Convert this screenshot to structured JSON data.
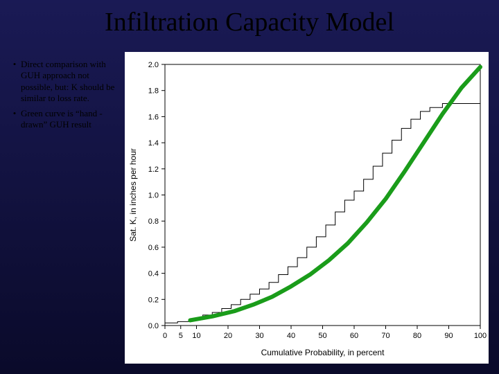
{
  "title": "Infiltration Capacity Model",
  "bullets": [
    "Direct comparison with GUH approach not possible, but: K should be similar to loss rate.",
    "Green curve is “hand -drawn” GUH result"
  ],
  "chart": {
    "type": "step+line",
    "background_color": "#ffffff",
    "plot_border_color": "#000000",
    "xlabel": "Cumulative Probability, in percent",
    "ylabel": "Sat. K, in inches per hour",
    "label_fontsize": 12,
    "tick_fontsize": 11,
    "xlim": [
      0,
      100
    ],
    "ylim": [
      0,
      2.0
    ],
    "xticks": [
      0,
      5,
      10,
      20,
      30,
      40,
      50,
      60,
      70,
      80,
      90,
      100
    ],
    "yticks": [
      0.0,
      0.2,
      0.4,
      0.6,
      0.8,
      1.0,
      1.2,
      1.4,
      1.6,
      1.8,
      2.0
    ],
    "step_series": {
      "color": "#000000",
      "line_width": 1,
      "points": [
        [
          0,
          0.02
        ],
        [
          4,
          0.02
        ],
        [
          4,
          0.03
        ],
        [
          8,
          0.03
        ],
        [
          8,
          0.05
        ],
        [
          12,
          0.05
        ],
        [
          12,
          0.08
        ],
        [
          15,
          0.08
        ],
        [
          15,
          0.1
        ],
        [
          18,
          0.1
        ],
        [
          18,
          0.13
        ],
        [
          21,
          0.13
        ],
        [
          21,
          0.16
        ],
        [
          24,
          0.16
        ],
        [
          24,
          0.2
        ],
        [
          27,
          0.2
        ],
        [
          27,
          0.24
        ],
        [
          30,
          0.24
        ],
        [
          30,
          0.28
        ],
        [
          33,
          0.28
        ],
        [
          33,
          0.33
        ],
        [
          36,
          0.33
        ],
        [
          36,
          0.39
        ],
        [
          39,
          0.39
        ],
        [
          39,
          0.45
        ],
        [
          42,
          0.45
        ],
        [
          42,
          0.52
        ],
        [
          45,
          0.52
        ],
        [
          45,
          0.6
        ],
        [
          48,
          0.6
        ],
        [
          48,
          0.68
        ],
        [
          51,
          0.68
        ],
        [
          51,
          0.77
        ],
        [
          54,
          0.77
        ],
        [
          54,
          0.87
        ],
        [
          57,
          0.87
        ],
        [
          57,
          0.96
        ],
        [
          60,
          0.96
        ],
        [
          60,
          1.03
        ],
        [
          63,
          1.03
        ],
        [
          63,
          1.12
        ],
        [
          66,
          1.12
        ],
        [
          66,
          1.22
        ],
        [
          69,
          1.22
        ],
        [
          69,
          1.32
        ],
        [
          72,
          1.32
        ],
        [
          72,
          1.42
        ],
        [
          75,
          1.42
        ],
        [
          75,
          1.51
        ],
        [
          78,
          1.51
        ],
        [
          78,
          1.58
        ],
        [
          81,
          1.58
        ],
        [
          81,
          1.64
        ],
        [
          84,
          1.64
        ],
        [
          84,
          1.67
        ],
        [
          88,
          1.67
        ],
        [
          88,
          1.7
        ],
        [
          100,
          1.7
        ]
      ]
    },
    "green_curve": {
      "color": "#1a9c1a",
      "line_width": 6,
      "points": [
        [
          8,
          0.04
        ],
        [
          15,
          0.07
        ],
        [
          22,
          0.11
        ],
        [
          28,
          0.16
        ],
        [
          34,
          0.22
        ],
        [
          40,
          0.3
        ],
        [
          46,
          0.39
        ],
        [
          52,
          0.5
        ],
        [
          58,
          0.63
        ],
        [
          64,
          0.79
        ],
        [
          70,
          0.97
        ],
        [
          76,
          1.18
        ],
        [
          82,
          1.4
        ],
        [
          88,
          1.62
        ],
        [
          94,
          1.82
        ],
        [
          100,
          1.98
        ]
      ]
    }
  }
}
